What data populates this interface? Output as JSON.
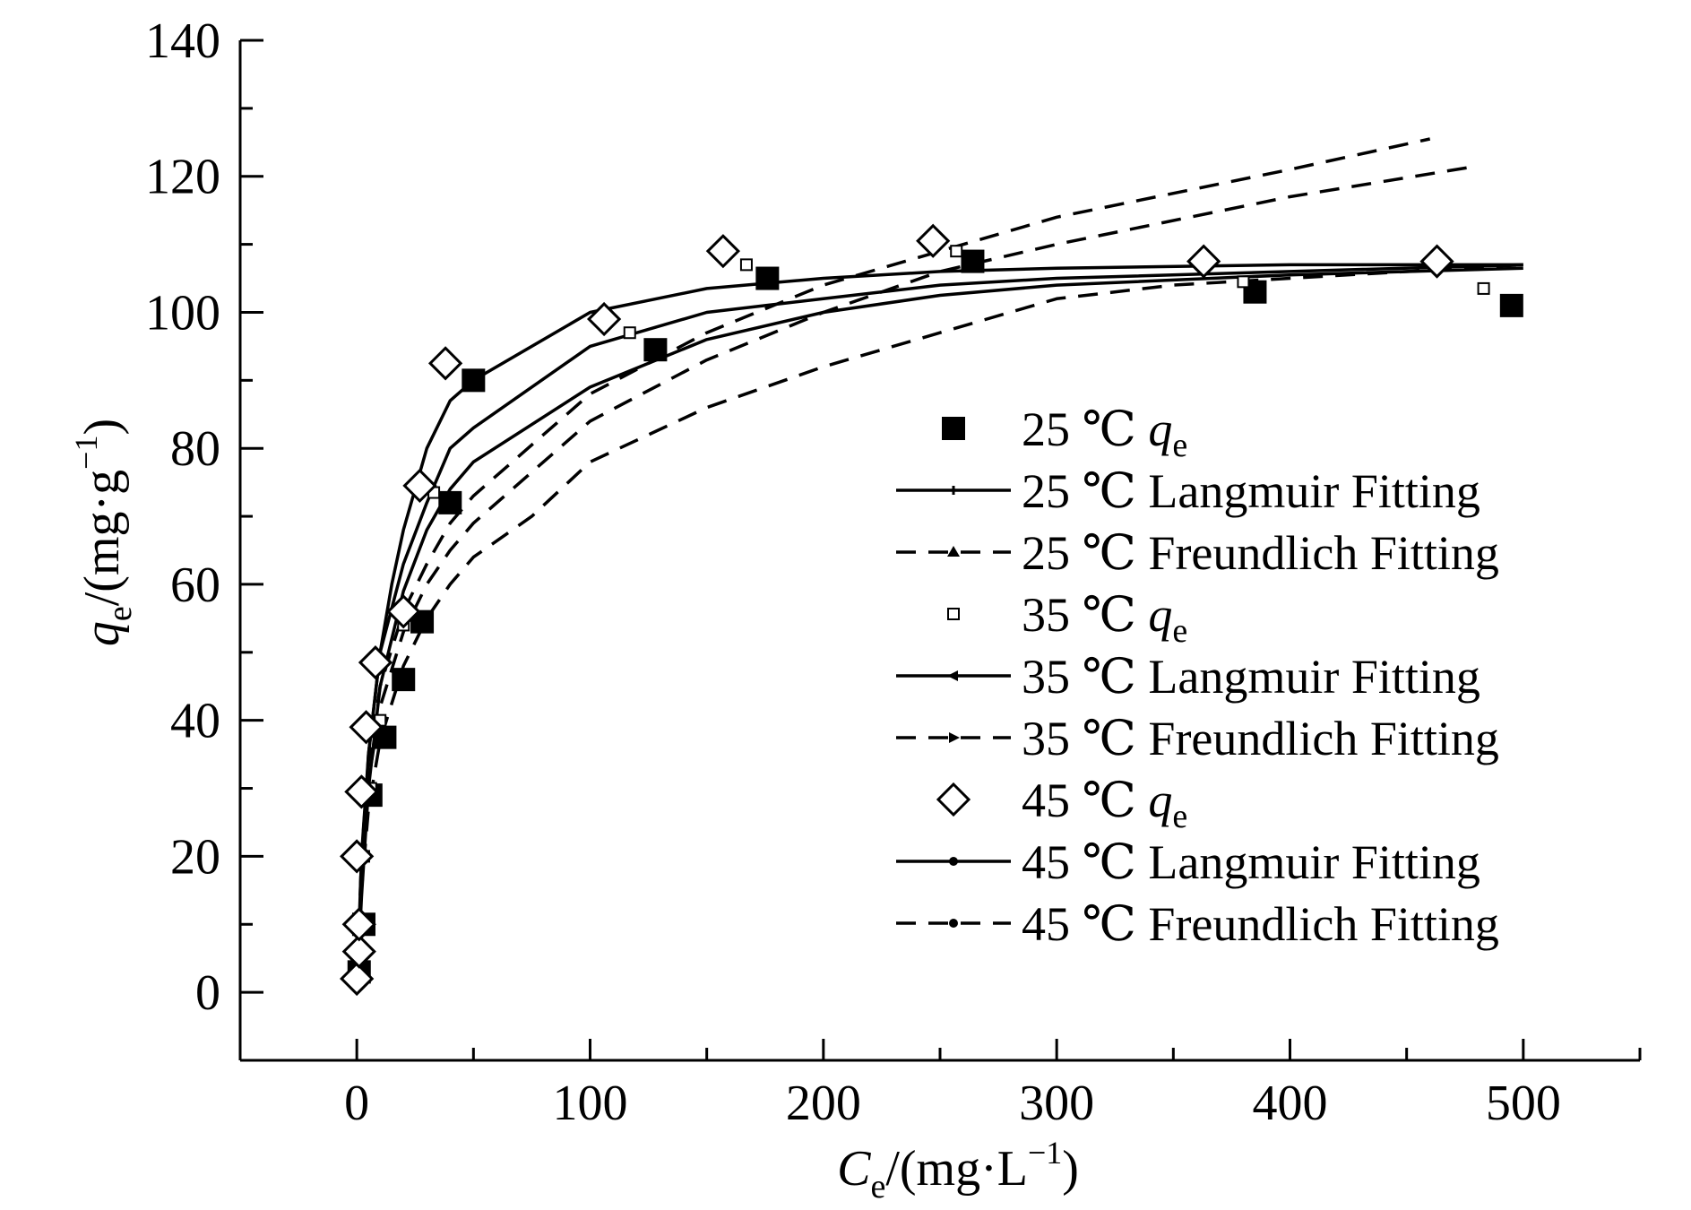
{
  "chart_data": {
    "type": "scatter",
    "title": "",
    "xlabel": {
      "symbol": "C",
      "subscript": "e",
      "unit": "/(mg·L",
      "exp": "−1",
      "close": ")"
    },
    "ylabel": {
      "symbol": "q",
      "subscript": "e",
      "unit": "/(mg·g",
      "exp": "−1",
      "close": ")"
    },
    "xlim": [
      -50,
      550
    ],
    "ylim": [
      -10,
      140
    ],
    "x_ticks": [
      0,
      100,
      200,
      300,
      400,
      500
    ],
    "x_tick_labels": [
      "0",
      "100",
      "200",
      "300",
      "400",
      "500"
    ],
    "y_ticks": [
      0,
      20,
      40,
      60,
      80,
      100,
      120,
      140
    ],
    "y_tick_labels": [
      "0",
      "20",
      "40",
      "60",
      "80",
      "100",
      "120",
      "140"
    ],
    "x_minor_step": 50,
    "y_minor_step": 10,
    "grid": false,
    "legend_position": "center-right",
    "series": [
      {
        "name": "25 ℃ q_e",
        "label_prefix": "25 ℃",
        "label_text": "q",
        "label_sub": "e",
        "kind": "points",
        "marker": "filled-square",
        "x": [
          1,
          3,
          6,
          12,
          20,
          28,
          40,
          50,
          128,
          176,
          264,
          385,
          495
        ],
        "y": [
          3,
          10,
          29,
          37.5,
          46,
          54.5,
          72,
          90,
          94.5,
          105,
          107.5,
          103,
          101
        ]
      },
      {
        "name": "25 ℃ Langmuir Fitting",
        "label_prefix": "25 ℃",
        "label_text": "Langmuir Fitting",
        "kind": "line",
        "style": "solid",
        "legend_marker": "plus",
        "x": [
          0,
          2,
          5,
          10,
          20,
          30,
          40,
          50,
          100,
          150,
          200,
          250,
          300,
          400,
          500
        ],
        "y": [
          0,
          14,
          30,
          45,
          59,
          68,
          74,
          78,
          89,
          96,
          100,
          102.5,
          104,
          105.5,
          106.5
        ]
      },
      {
        "name": "25 ℃ Freundlich Fitting",
        "label_prefix": "25 ℃",
        "label_text": "Freundlich Fitting",
        "kind": "line",
        "style": "dashed",
        "legend_marker": "triangle",
        "x": [
          0,
          2,
          5,
          10,
          20,
          30,
          40,
          50,
          100,
          150,
          200,
          250,
          300,
          400,
          460
        ],
        "y": [
          0,
          20,
          34,
          45,
          56,
          63,
          69,
          73,
          88,
          97,
          104,
          109,
          114,
          121,
          125.5
        ]
      },
      {
        "name": "35 ℃ q_e",
        "label_prefix": "35 ℃",
        "label_text": "q",
        "label_sub": "e",
        "kind": "points",
        "marker": "open-square-small",
        "x": [
          1,
          3,
          6,
          10,
          20,
          33,
          117,
          167,
          257,
          380,
          483
        ],
        "y": [
          5,
          20,
          30,
          40,
          54,
          73.5,
          97,
          107,
          109,
          104.5,
          103.5
        ]
      },
      {
        "name": "35 ℃ Langmuir Fitting",
        "label_prefix": "35 ℃",
        "label_text": "Langmuir Fitting",
        "kind": "line",
        "style": "solid",
        "legend_marker": "arrow-left",
        "x": [
          0,
          2,
          5,
          10,
          20,
          30,
          40,
          50,
          100,
          150,
          200,
          250,
          300,
          400,
          500
        ],
        "y": [
          0,
          17,
          35,
          50,
          63,
          72,
          80,
          83,
          95,
          100,
          102,
          104,
          105,
          106,
          107
        ]
      },
      {
        "name": "35 ℃ Freundlich Fitting",
        "label_prefix": "35 ℃",
        "label_text": "Freundlich Fitting",
        "kind": "line",
        "style": "dashed",
        "legend_marker": "arrow-right",
        "x": [
          0,
          2,
          5,
          10,
          20,
          30,
          40,
          50,
          100,
          150,
          200,
          250,
          300,
          400,
          480
        ],
        "y": [
          0,
          18,
          31,
          42,
          53,
          60,
          65,
          69,
          84,
          93,
          100,
          106,
          110,
          117,
          121.5
        ]
      },
      {
        "name": "45 ℃ q_e",
        "label_prefix": "45 ℃",
        "label_text": "q",
        "label_sub": "e",
        "kind": "points",
        "marker": "open-diamond",
        "x": [
          0,
          1,
          1,
          0,
          2,
          4,
          8,
          20,
          27,
          38,
          106,
          157,
          247,
          363,
          463
        ],
        "y": [
          2,
          6,
          10,
          20,
          29.5,
          39,
          48.5,
          56,
          74.5,
          92.5,
          99,
          109,
          110.5,
          107.5,
          107.5
        ]
      },
      {
        "name": "45 ℃ Langmuir Fitting",
        "label_prefix": "45 ℃",
        "label_text": "Langmuir Fitting",
        "kind": "line",
        "style": "solid",
        "legend_marker": "dot",
        "x": [
          0,
          2,
          5,
          10,
          15,
          20,
          30,
          40,
          50,
          100,
          150,
          200,
          250,
          300,
          400,
          500
        ],
        "y": [
          0,
          20,
          35,
          50,
          60,
          68,
          80,
          87,
          90,
          100,
          103.5,
          105,
          106,
          106.5,
          107,
          107
        ]
      },
      {
        "name": "45 ℃ Freundlich Fitting",
        "label_prefix": "45 ℃",
        "label_text": "Freundlich Fitting",
        "kind": "line",
        "style": "dashed",
        "legend_marker": "dot",
        "x": [
          0,
          2,
          5,
          10,
          20,
          30,
          40,
          50,
          75,
          100,
          150,
          200,
          250,
          300,
          350,
          400,
          500
        ],
        "y": [
          0,
          15,
          27,
          37,
          48,
          55,
          60,
          64,
          70,
          78,
          86,
          92,
          97,
          102,
          104,
          105,
          107
        ]
      }
    ]
  }
}
